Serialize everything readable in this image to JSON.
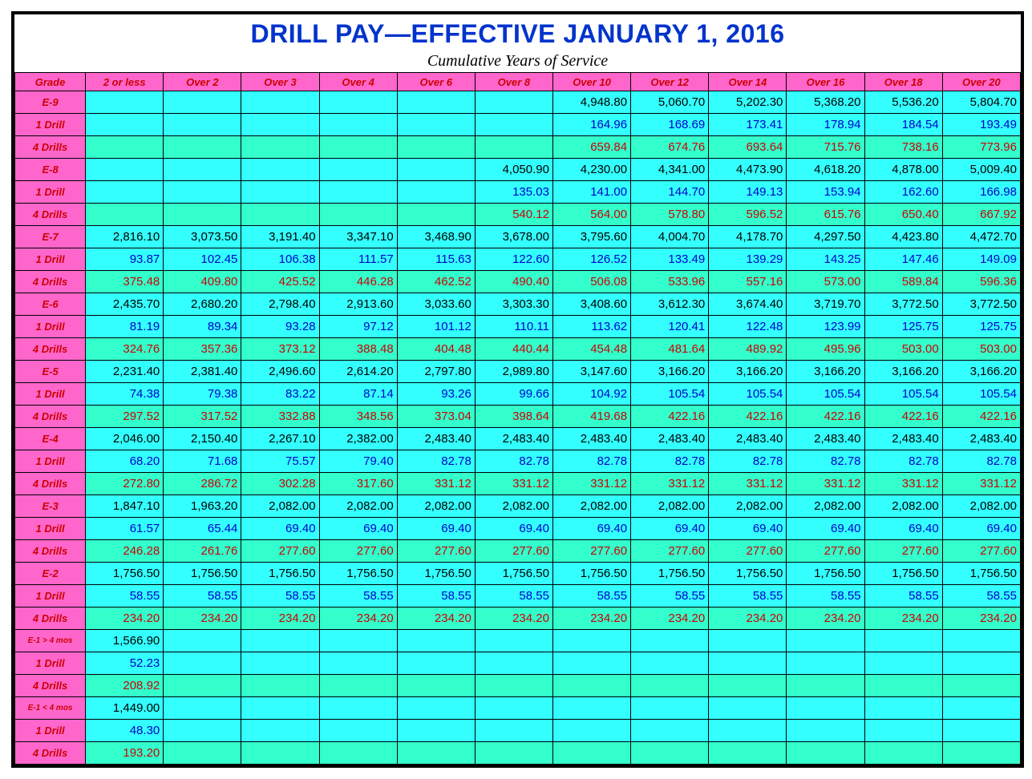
{
  "title": "DRILL PAY—EFFECTIVE JANUARY 1, 2016",
  "title_color": "#0033cc",
  "subtitle": "Cumulative Years of Service",
  "colors": {
    "header_bg": "#ff66cc",
    "header_fg": "#cc0000",
    "monthly_bg": "#33ffff",
    "monthly_fg": "#000000",
    "drill1_bg": "#33ffff",
    "drill1_fg": "#0000cc",
    "drill4_bg": "#33ffcc",
    "drill4_fg": "#cc0000"
  },
  "columns": [
    "Grade",
    "2 or less",
    "Over 2",
    "Over 3",
    "Over 4",
    "Over 6",
    "Over 8",
    "Over 10",
    "Over 12",
    "Over 14",
    "Over 16",
    "Over 18",
    "Over 20"
  ],
  "rows": [
    {
      "label": "E-9",
      "style": "monthly",
      "cells": [
        "",
        "",
        "",
        "",
        "",
        "",
        "4,948.80",
        "5,060.70",
        "5,202.30",
        "5,368.20",
        "5,536.20",
        "5,804.70"
      ]
    },
    {
      "label": "1 Drill",
      "style": "drill1",
      "cells": [
        "",
        "",
        "",
        "",
        "",
        "",
        "164.96",
        "168.69",
        "173.41",
        "178.94",
        "184.54",
        "193.49"
      ]
    },
    {
      "label": "4 Drills",
      "style": "drill4",
      "cells": [
        "",
        "",
        "",
        "",
        "",
        "",
        "659.84",
        "674.76",
        "693.64",
        "715.76",
        "738.16",
        "773.96"
      ]
    },
    {
      "label": "E-8",
      "style": "monthly",
      "cells": [
        "",
        "",
        "",
        "",
        "",
        "4,050.90",
        "4,230.00",
        "4,341.00",
        "4,473.90",
        "4,618.20",
        "4,878.00",
        "5,009.40"
      ]
    },
    {
      "label": "1 Drill",
      "style": "drill1",
      "cells": [
        "",
        "",
        "",
        "",
        "",
        "135.03",
        "141.00",
        "144.70",
        "149.13",
        "153.94",
        "162.60",
        "166.98"
      ]
    },
    {
      "label": "4 Drills",
      "style": "drill4",
      "cells": [
        "",
        "",
        "",
        "",
        "",
        "540.12",
        "564.00",
        "578.80",
        "596.52",
        "615.76",
        "650.40",
        "667.92"
      ]
    },
    {
      "label": "E-7",
      "style": "monthly",
      "cells": [
        "2,816.10",
        "3,073.50",
        "3,191.40",
        "3,347.10",
        "3,468.90",
        "3,678.00",
        "3,795.60",
        "4,004.70",
        "4,178.70",
        "4,297.50",
        "4,423.80",
        "4,472.70"
      ]
    },
    {
      "label": "1 Drill",
      "style": "drill1",
      "cells": [
        "93.87",
        "102.45",
        "106.38",
        "111.57",
        "115.63",
        "122.60",
        "126.52",
        "133.49",
        "139.29",
        "143.25",
        "147.46",
        "149.09"
      ]
    },
    {
      "label": "4 Drills",
      "style": "drill4",
      "cells": [
        "375.48",
        "409.80",
        "425.52",
        "446.28",
        "462.52",
        "490.40",
        "506.08",
        "533.96",
        "557.16",
        "573.00",
        "589.84",
        "596.36"
      ]
    },
    {
      "label": "E-6",
      "style": "monthly",
      "cells": [
        "2,435.70",
        "2,680.20",
        "2,798.40",
        "2,913.60",
        "3,033.60",
        "3,303.30",
        "3,408.60",
        "3,612.30",
        "3,674.40",
        "3,719.70",
        "3,772.50",
        "3,772.50"
      ]
    },
    {
      "label": "1 Drill",
      "style": "drill1",
      "cells": [
        "81.19",
        "89.34",
        "93.28",
        "97.12",
        "101.12",
        "110.11",
        "113.62",
        "120.41",
        "122.48",
        "123.99",
        "125.75",
        "125.75"
      ]
    },
    {
      "label": "4 Drills",
      "style": "drill4",
      "cells": [
        "324.76",
        "357.36",
        "373.12",
        "388.48",
        "404.48",
        "440.44",
        "454.48",
        "481.64",
        "489.92",
        "495.96",
        "503.00",
        "503.00"
      ]
    },
    {
      "label": "E-5",
      "style": "monthly",
      "cells": [
        "2,231.40",
        "2,381.40",
        "2,496.60",
        "2,614.20",
        "2,797.80",
        "2,989.80",
        "3,147.60",
        "3,166.20",
        "3,166.20",
        "3,166.20",
        "3,166.20",
        "3,166.20"
      ]
    },
    {
      "label": "1 Drill",
      "style": "drill1",
      "cells": [
        "74.38",
        "79.38",
        "83.22",
        "87.14",
        "93.26",
        "99.66",
        "104.92",
        "105.54",
        "105.54",
        "105.54",
        "105.54",
        "105.54"
      ]
    },
    {
      "label": "4 Drills",
      "style": "drill4",
      "cells": [
        "297.52",
        "317.52",
        "332.88",
        "348.56",
        "373.04",
        "398.64",
        "419.68",
        "422.16",
        "422.16",
        "422.16",
        "422.16",
        "422.16"
      ]
    },
    {
      "label": "E-4",
      "style": "monthly",
      "cells": [
        "2,046.00",
        "2,150.40",
        "2,267.10",
        "2,382.00",
        "2,483.40",
        "2,483.40",
        "2,483.40",
        "2,483.40",
        "2,483.40",
        "2,483.40",
        "2,483.40",
        "2,483.40"
      ]
    },
    {
      "label": "1 Drill",
      "style": "drill1",
      "cells": [
        "68.20",
        "71.68",
        "75.57",
        "79.40",
        "82.78",
        "82.78",
        "82.78",
        "82.78",
        "82.78",
        "82.78",
        "82.78",
        "82.78"
      ]
    },
    {
      "label": "4 Drills",
      "style": "drill4",
      "cells": [
        "272.80",
        "286.72",
        "302.28",
        "317.60",
        "331.12",
        "331.12",
        "331.12",
        "331.12",
        "331.12",
        "331.12",
        "331.12",
        "331.12"
      ]
    },
    {
      "label": "E-3",
      "style": "monthly",
      "cells": [
        "1,847.10",
        "1,963.20",
        "2,082.00",
        "2,082.00",
        "2,082.00",
        "2,082.00",
        "2,082.00",
        "2,082.00",
        "2,082.00",
        "2,082.00",
        "2,082.00",
        "2,082.00"
      ]
    },
    {
      "label": "1 Drill",
      "style": "drill1",
      "cells": [
        "61.57",
        "65.44",
        "69.40",
        "69.40",
        "69.40",
        "69.40",
        "69.40",
        "69.40",
        "69.40",
        "69.40",
        "69.40",
        "69.40"
      ]
    },
    {
      "label": "4 Drills",
      "style": "drill4",
      "cells": [
        "246.28",
        "261.76",
        "277.60",
        "277.60",
        "277.60",
        "277.60",
        "277.60",
        "277.60",
        "277.60",
        "277.60",
        "277.60",
        "277.60"
      ]
    },
    {
      "label": "E-2",
      "style": "monthly",
      "cells": [
        "1,756.50",
        "1,756.50",
        "1,756.50",
        "1,756.50",
        "1,756.50",
        "1,756.50",
        "1,756.50",
        "1,756.50",
        "1,756.50",
        "1,756.50",
        "1,756.50",
        "1,756.50"
      ]
    },
    {
      "label": "1 Drill",
      "style": "drill1",
      "cells": [
        "58.55",
        "58.55",
        "58.55",
        "58.55",
        "58.55",
        "58.55",
        "58.55",
        "58.55",
        "58.55",
        "58.55",
        "58.55",
        "58.55"
      ]
    },
    {
      "label": "4 Drills",
      "style": "drill4",
      "cells": [
        "234.20",
        "234.20",
        "234.20",
        "234.20",
        "234.20",
        "234.20",
        "234.20",
        "234.20",
        "234.20",
        "234.20",
        "234.20",
        "234.20"
      ]
    },
    {
      "label": "E-1 > 4 mos",
      "style": "monthly",
      "small": true,
      "cells": [
        "1,566.90",
        "",
        "",
        "",
        "",
        "",
        "",
        "",
        "",
        "",
        "",
        ""
      ]
    },
    {
      "label": "1 Drill",
      "style": "drill1",
      "cells": [
        "52.23",
        "",
        "",
        "",
        "",
        "",
        "",
        "",
        "",
        "",
        "",
        ""
      ]
    },
    {
      "label": "4 Drills",
      "style": "drill4",
      "cells": [
        "208.92",
        "",
        "",
        "",
        "",
        "",
        "",
        "",
        "",
        "",
        "",
        ""
      ]
    },
    {
      "label": "E-1 < 4 mos",
      "style": "monthly",
      "small": true,
      "cells": [
        "1,449.00",
        "",
        "",
        "",
        "",
        "",
        "",
        "",
        "",
        "",
        "",
        ""
      ]
    },
    {
      "label": "1 Drill",
      "style": "drill1",
      "cells": [
        "48.30",
        "",
        "",
        "",
        "",
        "",
        "",
        "",
        "",
        "",
        "",
        ""
      ]
    },
    {
      "label": "4 Drills",
      "style": "drill4",
      "cells": [
        "193.20",
        "",
        "",
        "",
        "",
        "",
        "",
        "",
        "",
        "",
        "",
        ""
      ]
    }
  ]
}
